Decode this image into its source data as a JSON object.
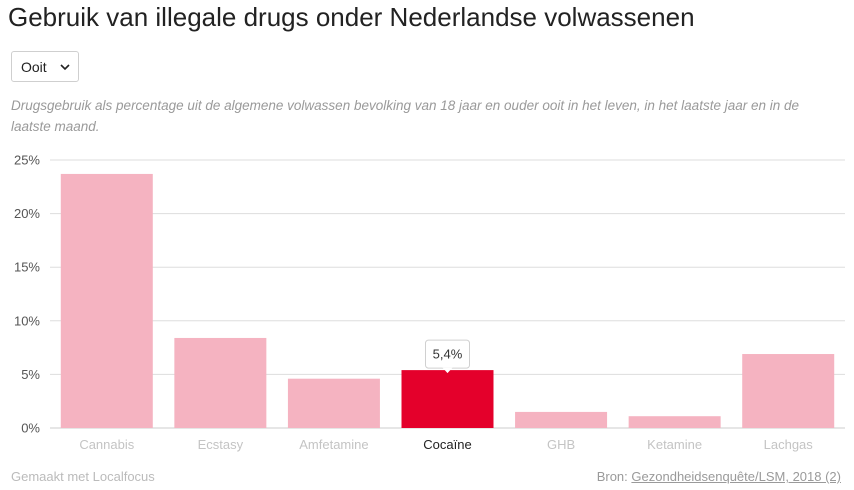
{
  "title": "Gebruik van illegale drugs onder Nederlandse volwassenen",
  "dropdown": {
    "selected": "Ooit"
  },
  "subtitle": "Drugsgebruik als percentage uit de algemene volwassen bevolking van 18 jaar en ouder ooit in het leven, in het laatste jaar en in de laatste maand.",
  "footer": {
    "made_with": "Gemaakt met Localfocus",
    "source_prefix": "Bron:",
    "source_link": "Gezondheidsenquête/LSM, 2018 (2)"
  },
  "colors": {
    "bar": "#f5b3c1",
    "highlight": "#e4002b",
    "grid": "#dddddd"
  },
  "chart_data": {
    "type": "bar",
    "categories": [
      "Cannabis",
      "Ecstasy",
      "Amfetamine",
      "Cocaïne",
      "GHB",
      "Ketamine",
      "Lachgas"
    ],
    "values": [
      23.7,
      8.4,
      4.6,
      5.4,
      1.5,
      1.1,
      6.9
    ],
    "ylim": [
      0,
      25
    ],
    "yticks": [
      "0%",
      "5%",
      "10%",
      "15%",
      "20%",
      "25%"
    ],
    "highlighted_index": 3,
    "tooltip": "5,4%",
    "grid": true
  }
}
